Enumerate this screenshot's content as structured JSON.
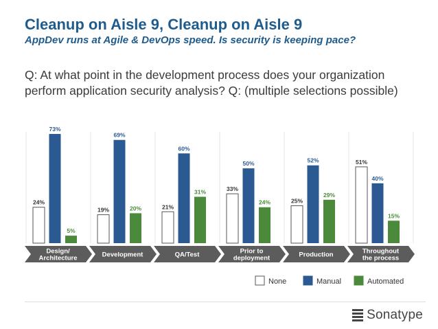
{
  "header": {
    "title": "Cleanup on Aisle 9, Cleanup on Aisle 9",
    "subtitle": "AppDev runs at Agile & DevOps speed. Is security is keeping pace?"
  },
  "question": "Q: At what point in the development process does your organization perform application security analysis? Q: (multiple selections possible)",
  "brand": {
    "name": "Sonatype",
    "icon": "sonatype-logo-icon"
  },
  "colors": {
    "none": "#ffffff",
    "manual": "#2b5a92",
    "automated": "#4a8a3a",
    "arrow": "#5c5c5c"
  },
  "chart_data": {
    "type": "bar",
    "categories": [
      [
        "Design/",
        "Architecture"
      ],
      [
        "Development"
      ],
      [
        "QA/Test"
      ],
      [
        "Prior to",
        "deployment"
      ],
      [
        "Production"
      ],
      [
        "Throughout",
        "the process"
      ]
    ],
    "series": [
      {
        "name": "None",
        "values": [
          24,
          19,
          21,
          33,
          25,
          51
        ],
        "labels": [
          "24%",
          "19%",
          "21%",
          "33%",
          "25%",
          "51%"
        ]
      },
      {
        "name": "Manual",
        "values": [
          73,
          69,
          60,
          50,
          52,
          40
        ],
        "labels": [
          "73%",
          "69%",
          "60%",
          "50%",
          "52%",
          "40%"
        ]
      },
      {
        "name": "Automated",
        "values": [
          5,
          20,
          31,
          24,
          29,
          15
        ],
        "labels": [
          "5%",
          "20%",
          "31%",
          "24%",
          "29%",
          "15%"
        ]
      }
    ],
    "ylim": [
      0,
      75
    ],
    "legend_position": "bottom-right"
  }
}
